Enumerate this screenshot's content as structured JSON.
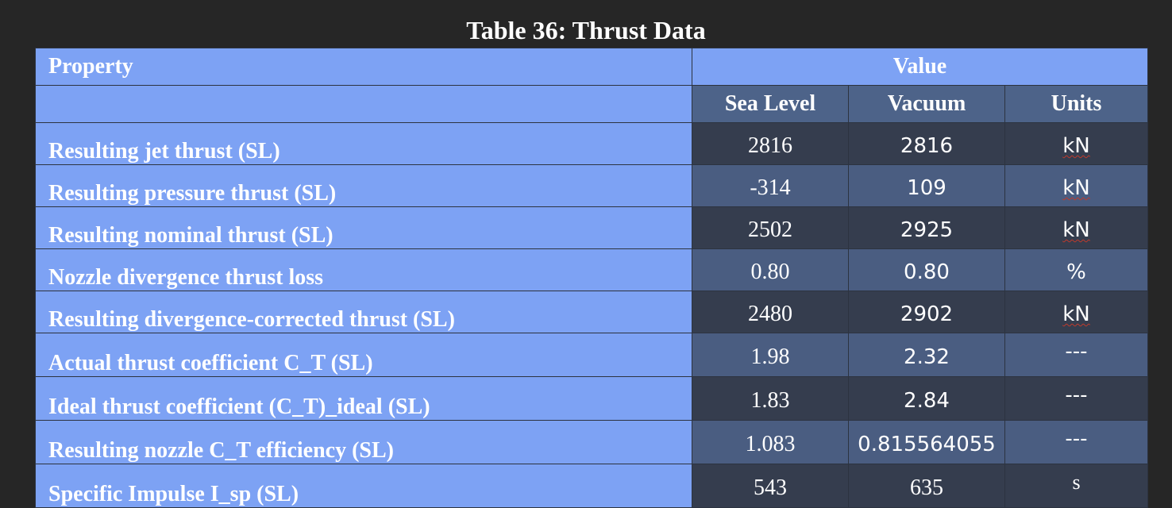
{
  "title": "Table 36: Thrust Data",
  "header": {
    "property": "Property",
    "value": "Value",
    "sea_level": "Sea Level",
    "vacuum": "Vacuum",
    "units": "Units"
  },
  "rows": [
    {
      "property": "Resulting jet thrust (SL)",
      "sea_level": "2816",
      "vacuum": "2816",
      "units": "kN"
    },
    {
      "property": "Resulting pressure thrust (SL)",
      "sea_level": "-314",
      "vacuum": "109",
      "units": "kN"
    },
    {
      "property": "Resulting nominal thrust (SL)",
      "sea_level": "2502",
      "vacuum": "2925",
      "units": "kN"
    },
    {
      "property": "Nozzle divergence thrust loss",
      "sea_level": "0.80",
      "vacuum": "0.80",
      "units": "%"
    },
    {
      "property": "Resulting divergence-corrected thrust (SL)",
      "sea_level": "2480",
      "vacuum": "2902",
      "units": "kN"
    },
    {
      "property": "Actual thrust coefficient C_T (SL)",
      "sea_level": "1.98",
      "vacuum": "2.32",
      "units": "---"
    },
    {
      "property": "Ideal thrust coefficient (C_T)_ideal (SL)",
      "sea_level": "1.83",
      "vacuum": "2.84",
      "units": "---"
    },
    {
      "property": "Resulting nozzle C_T efficiency (SL)",
      "sea_level": "1.083",
      "vacuum": "0.815564055",
      "units": "---"
    },
    {
      "property": "Specific Impulse I_sp (SL)",
      "sea_level": "543",
      "vacuum": "635",
      "units": "s"
    }
  ]
}
